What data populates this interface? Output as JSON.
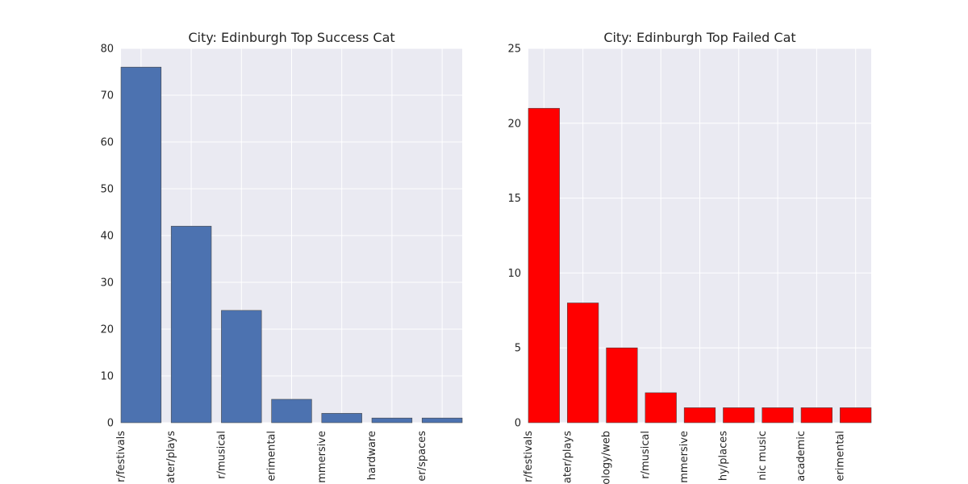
{
  "chart_data": [
    {
      "type": "bar",
      "title": "City: Edinburgh Top Success Cat",
      "categories": [
        "theater/festivals",
        "theater/plays",
        "theater/musical",
        "theater/experimental",
        "theater/immersive",
        "technology/hardware",
        "theater/spaces"
      ],
      "tick_labels": [
        "r/festivals",
        "ater/plays",
        "r/musical",
        "erimental",
        "mmersive",
        "hardware",
        "er/spaces"
      ],
      "values": [
        76,
        42,
        24,
        5,
        2,
        1,
        1
      ],
      "ylim": [
        0,
        80
      ],
      "yticks": [
        0,
        10,
        20,
        30,
        40,
        50,
        60,
        70,
        80
      ],
      "xlabel": "",
      "ylabel": "",
      "bar_color": "#4c72b0",
      "grid": true
    },
    {
      "type": "bar",
      "title": "City: Edinburgh Top Failed Cat",
      "categories": [
        "theater/festivals",
        "theater/plays",
        "technology/web",
        "theater/musical",
        "theater/immersive",
        "photography/places",
        "electronic music",
        "publishing/academic",
        "theater/experimental"
      ],
      "tick_labels": [
        "r/festivals",
        "ater/plays",
        "ology/web",
        "r/musical",
        "mmersive",
        "hy/places",
        "nic music",
        "academic",
        "erimental"
      ],
      "values": [
        21,
        8,
        5,
        2,
        1,
        1,
        1,
        1,
        1
      ],
      "ylim": [
        0,
        25
      ],
      "yticks": [
        0,
        5,
        10,
        15,
        20,
        25
      ],
      "xlabel": "",
      "ylabel": "",
      "bar_color": "#ff0000",
      "grid": true
    }
  ]
}
